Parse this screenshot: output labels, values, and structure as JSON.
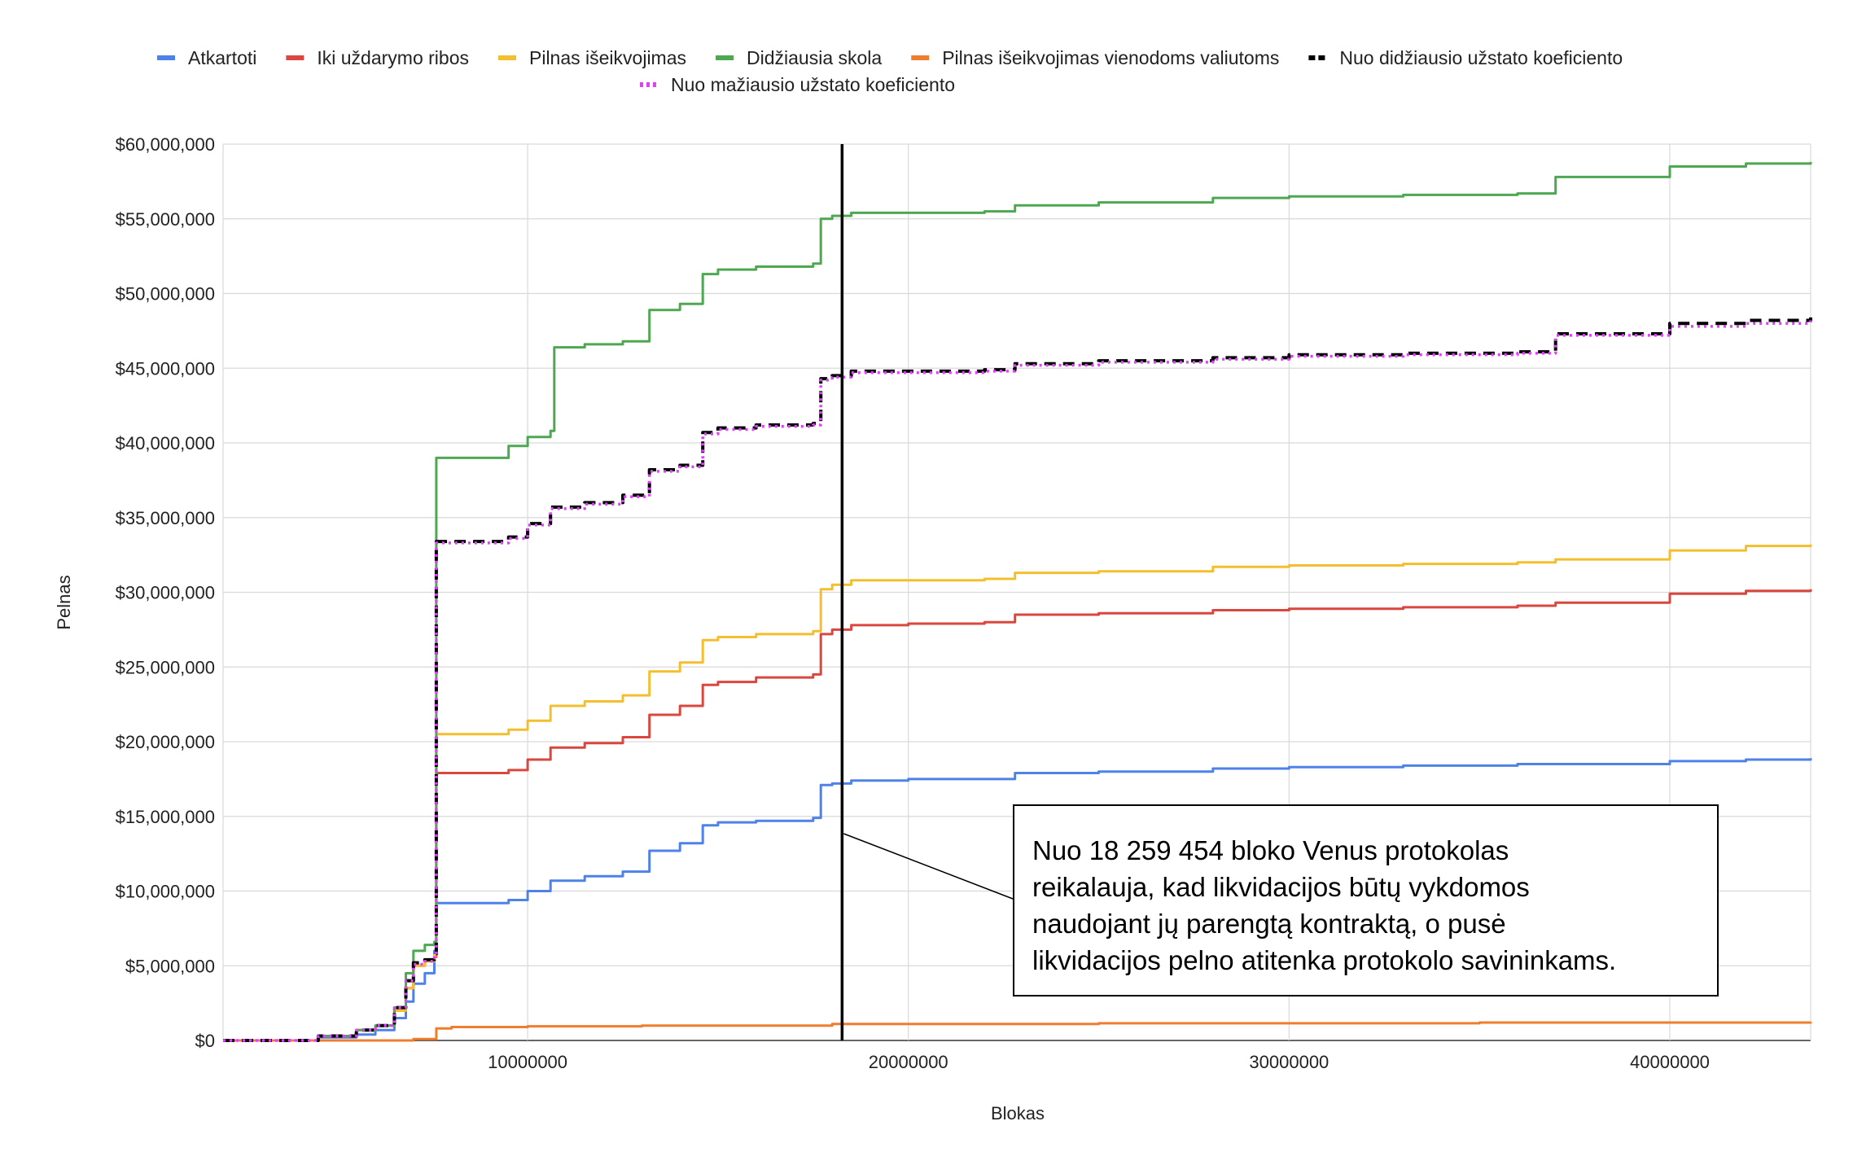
{
  "chart_data": {
    "type": "line",
    "title": "",
    "xlabel": "Blokas",
    "ylabel": "Pelnas",
    "xlim": [
      2000000,
      43700000
    ],
    "ylim": [
      0,
      60000000
    ],
    "x_ticks": [
      10000000,
      20000000,
      30000000,
      40000000
    ],
    "x_tick_labels": [
      "10000000",
      "20000000",
      "30000000",
      "40000000"
    ],
    "y_ticks": [
      0,
      5000000,
      10000000,
      15000000,
      20000000,
      25000000,
      30000000,
      35000000,
      40000000,
      45000000,
      50000000,
      55000000,
      60000000
    ],
    "y_tick_labels": [
      "$0",
      "$5,000,000",
      "$10,000,000",
      "$15,000,000",
      "$20,000,000",
      "$25,000,000",
      "$30,000,000",
      "$35,000,000",
      "$40,000,000",
      "$45,000,000",
      "$50,000,000",
      "$55,000,000",
      "$60,000,000"
    ],
    "grid": true,
    "legend_position": "top",
    "vertical_marker_x": 18259454,
    "annotation": {
      "lines": [
        "Nuo 18 259 454 bloko Venus protokolas",
        "reikalauja, kad likvidacijos būtų vykdomos",
        "naudojant jų parengtą kontraktą, o pusė",
        "likvidacijos pelno atitenka protokolo savininkams."
      ]
    },
    "series": [
      {
        "name": "Atkartoti",
        "color": "#4f82e8",
        "dash": "solid",
        "x": [
          2000000,
          4500000,
          5500000,
          6000000,
          6500000,
          6800000,
          7000000,
          7300000,
          7550000,
          7600000,
          9500000,
          10000000,
          10600000,
          11500000,
          12500000,
          13200000,
          14000000,
          14600000,
          15000000,
          16000000,
          17500000,
          17700000,
          18000000,
          18500000,
          20000000,
          22000000,
          22800000,
          25000000,
          28000000,
          30000000,
          33000000,
          36000000,
          37000000,
          40000000,
          42000000,
          43700000
        ],
        "y": [
          0,
          200000,
          400000,
          700000,
          1500000,
          2600000,
          3800000,
          4500000,
          6000000,
          9200000,
          9400000,
          10000000,
          10700000,
          11000000,
          11300000,
          12700000,
          13200000,
          14400000,
          14600000,
          14700000,
          14900000,
          17100000,
          17200000,
          17400000,
          17500000,
          17500000,
          17900000,
          18000000,
          18200000,
          18300000,
          18400000,
          18500000,
          18500000,
          18700000,
          18800000,
          18900000
        ]
      },
      {
        "name": "Iki uždarymo ribos",
        "color": "#d9473f",
        "dash": "solid",
        "x": [
          2000000,
          4500000,
          5500000,
          6000000,
          6500000,
          6800000,
          7000000,
          7300000,
          7550000,
          7600000,
          9500000,
          10000000,
          10600000,
          11500000,
          12500000,
          13200000,
          14000000,
          14600000,
          15000000,
          16000000,
          17500000,
          17700000,
          18000000,
          18500000,
          20000000,
          22000000,
          22800000,
          25000000,
          28000000,
          30000000,
          33000000,
          36000000,
          37000000,
          40000000,
          42000000,
          43700000
        ],
        "y": [
          0,
          300000,
          700000,
          1000000,
          2000000,
          3500000,
          5000000,
          5300000,
          5600000,
          17900000,
          18100000,
          18800000,
          19600000,
          19900000,
          20300000,
          21800000,
          22400000,
          23800000,
          24000000,
          24300000,
          24500000,
          27200000,
          27500000,
          27800000,
          27900000,
          28000000,
          28500000,
          28600000,
          28800000,
          28900000,
          29000000,
          29100000,
          29300000,
          29900000,
          30100000,
          30200000
        ]
      },
      {
        "name": "Pilnas išeikvojimas",
        "color": "#f4bf2f",
        "dash": "solid",
        "x": [
          2000000,
          4500000,
          5500000,
          6000000,
          6500000,
          6800000,
          7000000,
          7300000,
          7550000,
          7600000,
          9500000,
          10000000,
          10600000,
          11500000,
          12500000,
          13200000,
          14000000,
          14600000,
          15000000,
          16000000,
          17500000,
          17700000,
          18000000,
          18500000,
          20000000,
          22000000,
          22800000,
          25000000,
          28000000,
          30000000,
          33000000,
          36000000,
          37000000,
          40000000,
          42000000,
          43700000
        ],
        "y": [
          0,
          300000,
          700000,
          1000000,
          2000000,
          3500000,
          5000000,
          5300000,
          5700000,
          20500000,
          20800000,
          21400000,
          22400000,
          22700000,
          23100000,
          24700000,
          25300000,
          26800000,
          27000000,
          27200000,
          27400000,
          30200000,
          30500000,
          30800000,
          30800000,
          30900000,
          31300000,
          31400000,
          31700000,
          31800000,
          31900000,
          32000000,
          32200000,
          32800000,
          33100000,
          33200000
        ]
      },
      {
        "name": "Didžiausia skola",
        "color": "#4ea852",
        "dash": "solid",
        "x": [
          2000000,
          4500000,
          5500000,
          6000000,
          6500000,
          6800000,
          7000000,
          7300000,
          7550000,
          7600000,
          9500000,
          10000000,
          10600000,
          10700000,
          11500000,
          12500000,
          13200000,
          14000000,
          14600000,
          15000000,
          16000000,
          17500000,
          17700000,
          18000000,
          18500000,
          20000000,
          22000000,
          22800000,
          25000000,
          28000000,
          30000000,
          33000000,
          36000000,
          37000000,
          40000000,
          42000000,
          43700000
        ],
        "y": [
          0,
          300000,
          700000,
          1000000,
          2200000,
          4500000,
          6000000,
          6400000,
          6600000,
          39000000,
          39800000,
          40400000,
          40800000,
          46400000,
          46600000,
          46800000,
          48900000,
          49300000,
          51300000,
          51600000,
          51800000,
          52000000,
          55000000,
          55200000,
          55400000,
          55400000,
          55500000,
          55900000,
          56100000,
          56400000,
          56500000,
          56600000,
          56700000,
          57800000,
          58500000,
          58700000,
          58800000
        ]
      },
      {
        "name": "Pilnas išeikvojimas vienodoms valiutoms",
        "color": "#f07d2e",
        "dash": "solid",
        "x": [
          2000000,
          6000000,
          7000000,
          7600000,
          8000000,
          10000000,
          13000000,
          18000000,
          25000000,
          35000000,
          43700000
        ],
        "y": [
          0,
          0,
          100000,
          800000,
          900000,
          950000,
          1000000,
          1100000,
          1150000,
          1200000,
          1250000
        ]
      },
      {
        "name": "Nuo didžiausio užstato koeficiento",
        "color": "#000000",
        "dash": "dashed",
        "x": [
          2000000,
          4500000,
          5500000,
          6000000,
          6500000,
          6800000,
          7000000,
          7300000,
          7550000,
          7600000,
          9500000,
          10000000,
          10600000,
          11500000,
          12500000,
          13200000,
          14000000,
          14600000,
          15000000,
          16000000,
          17500000,
          17700000,
          18000000,
          18500000,
          20000000,
          22000000,
          22800000,
          25000000,
          28000000,
          30000000,
          33000000,
          36000000,
          37000000,
          40000000,
          42000000,
          43700000
        ],
        "y": [
          0,
          300000,
          700000,
          1000000,
          2200000,
          4000000,
          5200000,
          5400000,
          5800000,
          33400000,
          33700000,
          34600000,
          35700000,
          36000000,
          36500000,
          38200000,
          38500000,
          40700000,
          41000000,
          41200000,
          41300000,
          44300000,
          44500000,
          44800000,
          44800000,
          44900000,
          45300000,
          45500000,
          45700000,
          45900000,
          46000000,
          46100000,
          47300000,
          48000000,
          48200000,
          48400000
        ]
      },
      {
        "name": "Nuo mažiausio užstato koeficiento",
        "color": "#e040fb",
        "dash": "dotted",
        "x": [
          2000000,
          4500000,
          5500000,
          6000000,
          6500000,
          6800000,
          7000000,
          7300000,
          7550000,
          7600000,
          9500000,
          10000000,
          10600000,
          11500000,
          12500000,
          13200000,
          14000000,
          14600000,
          15000000,
          16000000,
          17500000,
          17700000,
          18000000,
          18500000,
          20000000,
          22000000,
          22800000,
          25000000,
          28000000,
          30000000,
          33000000,
          36000000,
          37000000,
          40000000,
          42000000,
          43700000
        ],
        "y": [
          0,
          300000,
          700000,
          1000000,
          2200000,
          4000000,
          5100000,
          5300000,
          5700000,
          33300000,
          33600000,
          34500000,
          35600000,
          35900000,
          36400000,
          38100000,
          38400000,
          40600000,
          40900000,
          41100000,
          41200000,
          44200000,
          44400000,
          44700000,
          44700000,
          44800000,
          45200000,
          45400000,
          45600000,
          45800000,
          45900000,
          46000000,
          47200000,
          47800000,
          48000000,
          48200000
        ]
      }
    ]
  }
}
